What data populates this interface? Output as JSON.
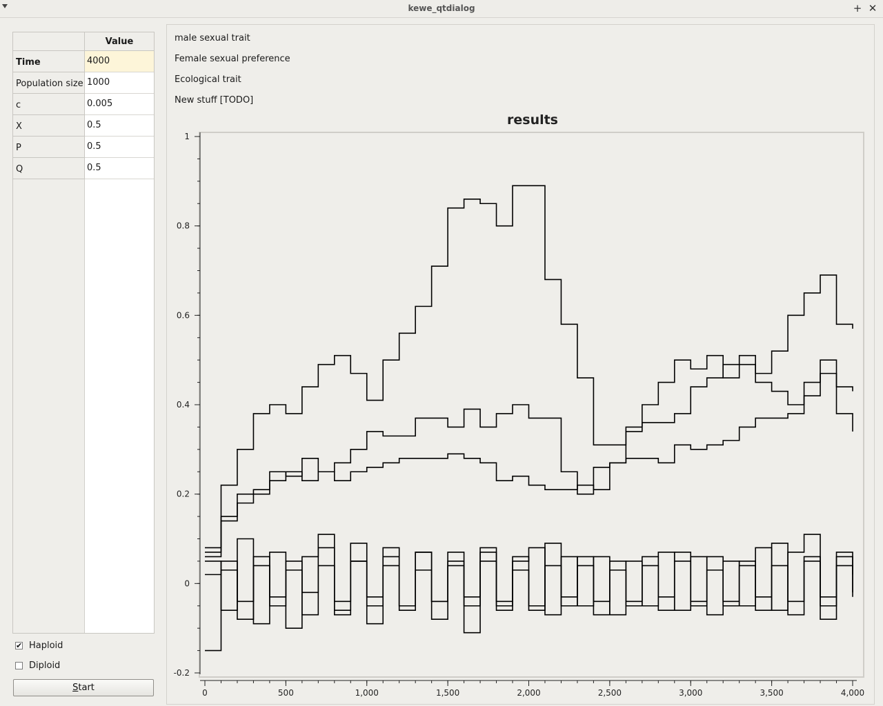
{
  "window": {
    "title": "kewe_qtdialog",
    "pin_glyph": "+",
    "close_glyph": "✕"
  },
  "params_table": {
    "column_header": "Value",
    "rows": [
      {
        "label": "Time",
        "value": "4000",
        "current": true
      },
      {
        "label": "Population size",
        "value": "1000"
      },
      {
        "label": "c",
        "value": "0.005"
      },
      {
        "label": "X",
        "value": "0.5"
      },
      {
        "label": "P",
        "value": "0.5"
      },
      {
        "label": "Q",
        "value": "0.5"
      }
    ]
  },
  "options": {
    "haploid": {
      "label": "Haploid",
      "checked": true,
      "mark": "✔"
    },
    "diploid": {
      "label": "Diploid",
      "checked": false,
      "mark": ""
    }
  },
  "start_button": {
    "mnemonic": "S",
    "rest": "tart"
  },
  "trait_labels": [
    "male sexual trait",
    "Female sexual preference",
    "Ecological trait",
    "New stuff [TODO]"
  ],
  "chart_data": {
    "type": "line",
    "title": "results",
    "xlabel": "",
    "ylabel": "",
    "xlim": [
      0,
      4000
    ],
    "ylim": [
      -0.2,
      1
    ],
    "x_ticks": [
      0,
      500,
      1000,
      1500,
      2000,
      2500,
      3000,
      3500,
      4000
    ],
    "x_tick_labels": [
      "0",
      "500",
      "1,000",
      "1,500",
      "2,000",
      "2,500",
      "3,000",
      "3,500",
      "4,000"
    ],
    "y_ticks": [
      -0.2,
      0,
      0.2,
      0.4,
      0.6,
      0.8,
      1
    ],
    "y_tick_labels": [
      "-0.2",
      "0",
      "0.2",
      "0.4",
      "0.6",
      "0.8",
      "1"
    ],
    "line_color": "#000000",
    "series": [
      {
        "x": [
          0,
          100,
          200,
          300,
          400,
          500,
          600,
          700,
          800,
          900,
          1000,
          1100,
          1200,
          1300,
          1400,
          1500,
          1600,
          1700,
          1800,
          1900,
          2000,
          2100,
          2200,
          2300,
          2400,
          2500,
          2600,
          2700,
          2800,
          2900,
          3000,
          3100,
          3200,
          3300,
          3400,
          3500,
          3600,
          3700,
          3800,
          3900,
          4000
        ],
        "y": [
          0.06,
          0.22,
          0.3,
          0.38,
          0.4,
          0.38,
          0.44,
          0.49,
          0.51,
          0.47,
          0.41,
          0.5,
          0.56,
          0.62,
          0.71,
          0.84,
          0.86,
          0.85,
          0.8,
          0.89,
          0.89,
          0.68,
          0.58,
          0.46,
          0.31,
          0.31,
          0.35,
          0.4,
          0.45,
          0.5,
          0.48,
          0.51,
          0.46,
          0.49,
          0.47,
          0.52,
          0.6,
          0.65,
          0.69,
          0.58,
          0.57
        ]
      },
      {
        "x": [
          0,
          100,
          200,
          300,
          400,
          500,
          600,
          700,
          800,
          900,
          1000,
          1100,
          1200,
          1300,
          1400,
          1500,
          1600,
          1700,
          1800,
          1900,
          2000,
          2100,
          2200,
          2300,
          2400,
          2500,
          2600,
          2700,
          2800,
          2900,
          3000,
          3100,
          3200,
          3300,
          3400,
          3500,
          3600,
          3700,
          3800,
          3900,
          4000
        ],
        "y": [
          0.08,
          0.14,
          0.2,
          0.2,
          0.25,
          0.24,
          0.28,
          0.25,
          0.27,
          0.3,
          0.34,
          0.33,
          0.33,
          0.37,
          0.37,
          0.35,
          0.39,
          0.35,
          0.38,
          0.4,
          0.37,
          0.37,
          0.25,
          0.2,
          0.26,
          0.27,
          0.34,
          0.36,
          0.36,
          0.38,
          0.44,
          0.46,
          0.49,
          0.51,
          0.45,
          0.43,
          0.4,
          0.45,
          0.5,
          0.44,
          0.43
        ]
      },
      {
        "x": [
          0,
          100,
          200,
          300,
          400,
          500,
          600,
          700,
          800,
          900,
          1000,
          1100,
          1200,
          1300,
          1400,
          1500,
          1600,
          1700,
          1800,
          1900,
          2000,
          2100,
          2200,
          2300,
          2400,
          2500,
          2600,
          2700,
          2800,
          2900,
          3000,
          3100,
          3200,
          3300,
          3400,
          3500,
          3600,
          3700,
          3800,
          3900,
          4000
        ],
        "y": [
          0.07,
          0.15,
          0.18,
          0.21,
          0.23,
          0.25,
          0.23,
          0.25,
          0.23,
          0.25,
          0.26,
          0.27,
          0.28,
          0.28,
          0.28,
          0.29,
          0.28,
          0.27,
          0.23,
          0.24,
          0.22,
          0.21,
          0.21,
          0.22,
          0.21,
          0.27,
          0.28,
          0.28,
          0.27,
          0.31,
          0.3,
          0.31,
          0.32,
          0.35,
          0.37,
          0.37,
          0.38,
          0.42,
          0.47,
          0.38,
          0.34
        ]
      },
      {
        "x": [
          0,
          100,
          200,
          300,
          400,
          500,
          600,
          700,
          800,
          900,
          1000,
          1100,
          1200,
          1300,
          1400,
          1500,
          1600,
          1700,
          1800,
          1900,
          2000,
          2100,
          2200,
          2300,
          2400,
          2500,
          2600,
          2700,
          2800,
          2900,
          3000,
          3100,
          3200,
          3300,
          3400,
          3500,
          3600,
          3700,
          3800,
          3900,
          4000
        ],
        "y": [
          -0.15,
          0.03,
          -0.08,
          0.06,
          -0.05,
          0.05,
          -0.07,
          0.08,
          -0.06,
          0.05,
          -0.09,
          0.06,
          -0.05,
          0.07,
          -0.04,
          0.05,
          -0.11,
          0.07,
          -0.05,
          0.06,
          -0.06,
          0.09,
          -0.05,
          0.06,
          -0.07,
          0.05,
          -0.04,
          0.06,
          -0.06,
          0.07,
          -0.05,
          0.06,
          -0.04,
          0.05,
          -0.06,
          0.09,
          -0.07,
          0.06,
          -0.05,
          0.07,
          -0.03
        ]
      },
      {
        "x": [
          0,
          100,
          200,
          300,
          400,
          500,
          600,
          700,
          800,
          900,
          1000,
          1100,
          1200,
          1300,
          1400,
          1500,
          1600,
          1700,
          1800,
          1900,
          2000,
          2100,
          2200,
          2300,
          2400,
          2500,
          2600,
          2700,
          2800,
          2900,
          3000,
          3100,
          3200,
          3300,
          3400,
          3500,
          3600,
          3700,
          3800,
          3900,
          4000
        ],
        "y": [
          0.05,
          -0.06,
          0.1,
          -0.09,
          0.07,
          -0.1,
          0.06,
          0.11,
          -0.07,
          0.09,
          -0.05,
          0.08,
          -0.06,
          0.07,
          -0.08,
          0.07,
          -0.05,
          0.08,
          -0.06,
          0.05,
          0.08,
          -0.07,
          0.06,
          -0.05,
          0.06,
          -0.07,
          0.05,
          -0.05,
          0.07,
          -0.06,
          0.06,
          -0.07,
          0.05,
          -0.05,
          0.08,
          -0.06,
          0.07,
          0.11,
          -0.08,
          0.06,
          0.02
        ]
      },
      {
        "x": [
          0,
          100,
          200,
          300,
          400,
          500,
          600,
          700,
          800,
          900,
          1000,
          1100,
          1200,
          1300,
          1400,
          1500,
          1600,
          1700,
          1800,
          1900,
          2000,
          2100,
          2200,
          2300,
          2400,
          2500,
          2600,
          2700,
          2800,
          2900,
          3000,
          3100,
          3200,
          3300,
          3400,
          3500,
          3600,
          3700,
          3800,
          3900,
          4000
        ],
        "y": [
          0.02,
          0.05,
          -0.04,
          0.04,
          -0.03,
          0.03,
          -0.02,
          0.04,
          -0.04,
          0.05,
          -0.03,
          0.04,
          -0.05,
          0.03,
          -0.04,
          0.04,
          -0.03,
          0.05,
          -0.04,
          0.03,
          -0.05,
          0.04,
          -0.03,
          0.04,
          -0.04,
          0.03,
          -0.05,
          0.04,
          -0.03,
          0.05,
          -0.04,
          0.03,
          -0.05,
          0.04,
          -0.03,
          0.04,
          -0.04,
          0.05,
          -0.03,
          0.04,
          -0.02
        ]
      }
    ]
  }
}
